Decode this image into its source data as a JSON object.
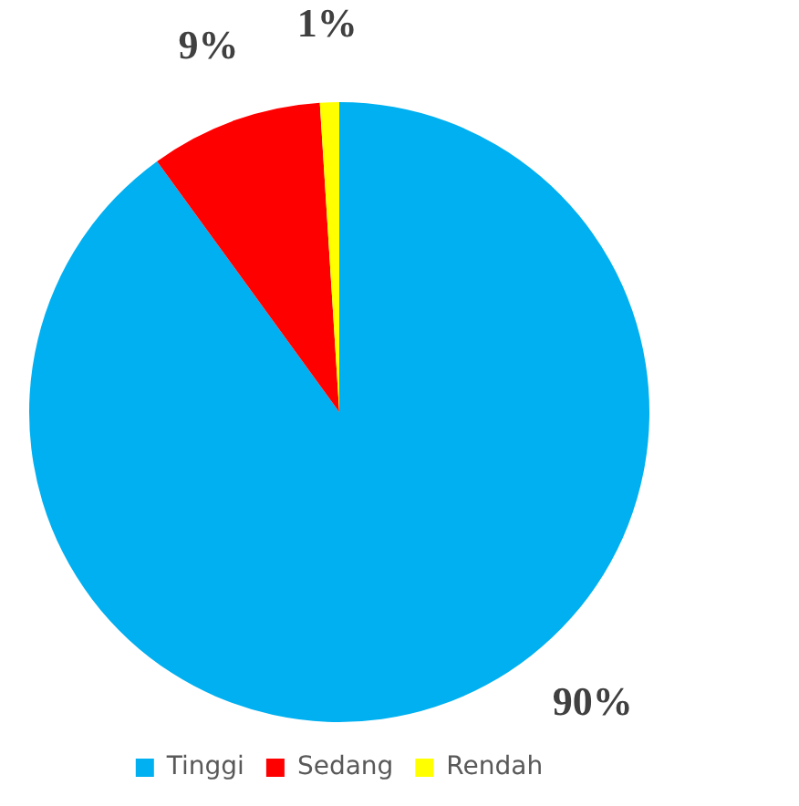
{
  "chart_data": {
    "type": "pie",
    "categories": [
      "Tinggi",
      "Sedang",
      "Rendah"
    ],
    "values": [
      90,
      9,
      1
    ],
    "colors": [
      "#00b0f0",
      "#ff0000",
      "#ffff00"
    ],
    "value_labels": [
      "90%",
      "9%",
      "1%"
    ],
    "legend": "bottom"
  }
}
